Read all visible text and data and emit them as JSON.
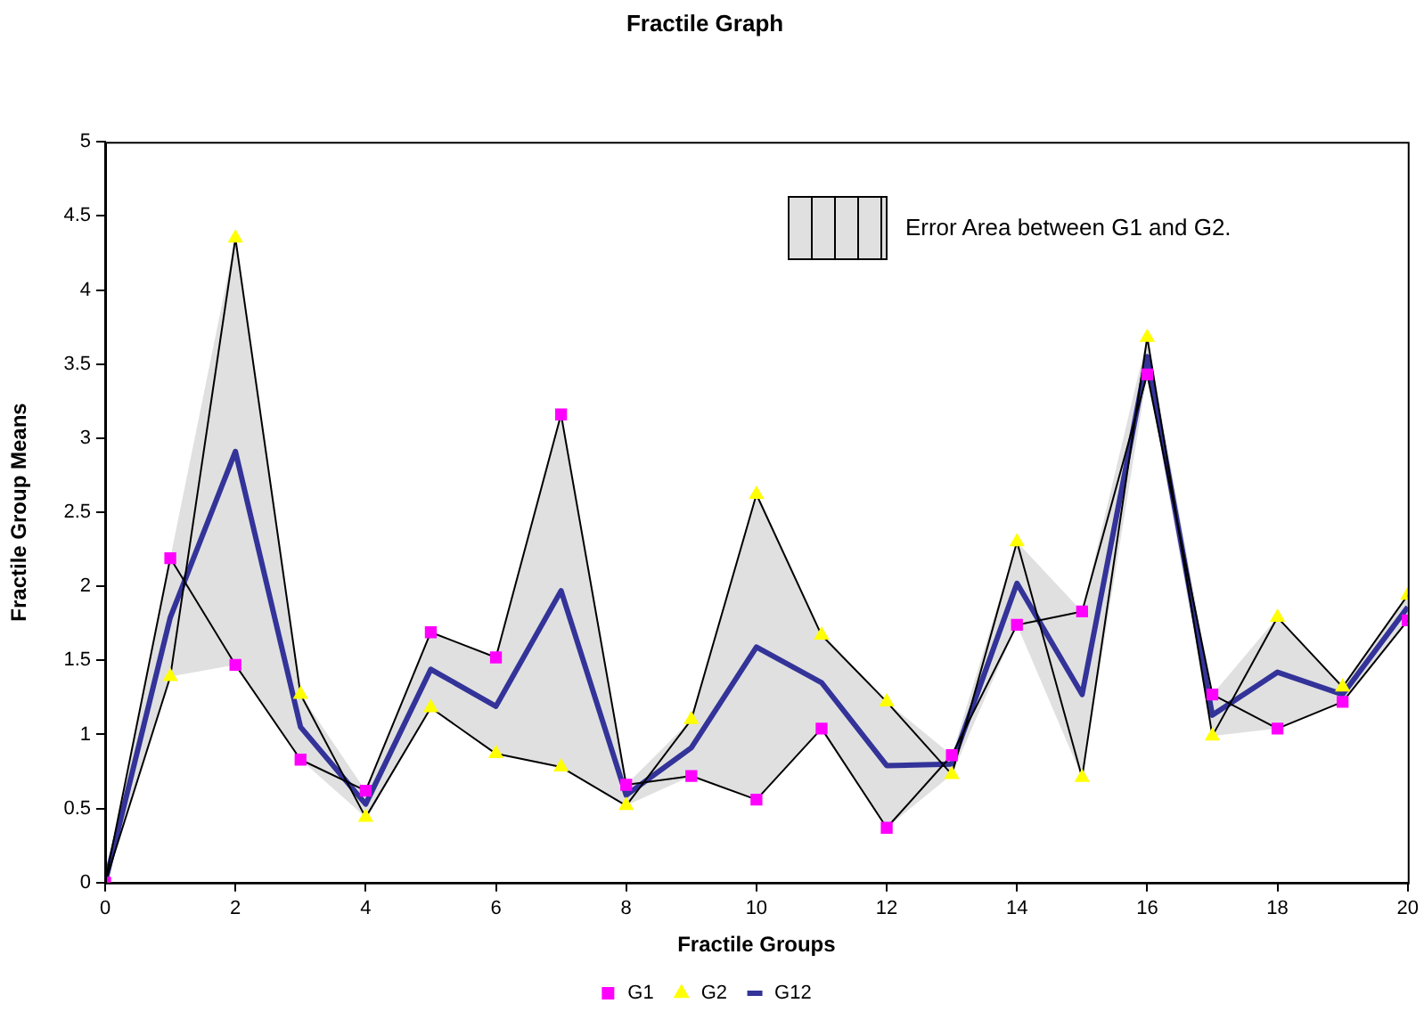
{
  "chart_data": {
    "type": "line",
    "title": "Fractile Graph",
    "xlabel": "Fractile Groups",
    "ylabel": "Fractile Group Means",
    "x": [
      0,
      1,
      2,
      3,
      4,
      5,
      6,
      7,
      8,
      9,
      10,
      11,
      12,
      13,
      14,
      15,
      16,
      17,
      18,
      19,
      20
    ],
    "series": [
      {
        "name": "G1",
        "color": "#ff00ff",
        "marker": "square",
        "values": [
          0,
          2.19,
          1.47,
          0.83,
          0.62,
          1.69,
          1.52,
          3.16,
          0.66,
          0.72,
          0.56,
          1.04,
          0.37,
          0.86,
          1.74,
          1.83,
          3.43,
          1.27,
          1.04,
          1.22,
          1.77
        ]
      },
      {
        "name": "G2",
        "color": "#ffff00",
        "marker": "triangle",
        "values": [
          0,
          1.39,
          4.35,
          1.27,
          0.44,
          1.18,
          0.87,
          0.78,
          0.52,
          1.1,
          2.62,
          1.67,
          1.22,
          0.73,
          2.3,
          0.71,
          3.68,
          0.99,
          1.79,
          1.32,
          1.94
        ]
      },
      {
        "name": "G12",
        "color": "#333399",
        "marker": "none",
        "values": [
          0,
          1.79,
          2.91,
          1.05,
          0.53,
          1.44,
          1.19,
          1.97,
          0.59,
          0.91,
          1.59,
          1.35,
          0.79,
          0.8,
          2.02,
          1.27,
          3.55,
          1.13,
          1.42,
          1.27,
          1.86
        ],
        "lower": [
          0,
          1.39,
          1.47,
          0.83,
          0.44,
          1.18,
          0.87,
          0.78,
          0.52,
          0.72,
          0.56,
          1.04,
          0.37,
          0.73,
          1.74,
          0.71,
          3.43,
          0.99,
          1.04,
          1.22,
          1.77
        ],
        "upper": [
          0,
          2.19,
          4.35,
          1.27,
          0.62,
          1.69,
          1.52,
          3.16,
          0.66,
          1.1,
          2.62,
          1.67,
          1.22,
          0.86,
          2.3,
          1.83,
          3.68,
          1.27,
          1.79,
          1.32,
          1.94
        ]
      }
    ],
    "annotations": [
      "Error Area between G1 and G2."
    ],
    "xlim": [
      0,
      20
    ],
    "xticks": [
      0,
      2,
      4,
      6,
      8,
      10,
      12,
      14,
      16,
      18,
      20
    ],
    "ylim": [
      0,
      5
    ],
    "yticks": [
      0,
      0.5,
      1,
      1.5,
      2,
      2.5,
      3,
      3.5,
      4,
      4.5,
      5
    ],
    "grid": false,
    "legend": "bottom"
  }
}
